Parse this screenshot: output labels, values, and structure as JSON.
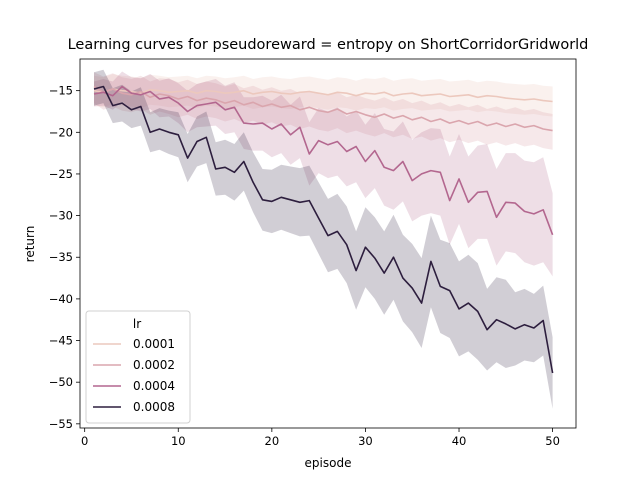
{
  "chart_data": {
    "type": "line",
    "title": "Learning curves for pseudoreward = entropy on ShortCorridorGridworld",
    "xlabel": "episode",
    "ylabel": "return",
    "xlim": [
      -0.5,
      52.5
    ],
    "ylim": [
      -55.5,
      -11.2
    ],
    "xticks": [
      0,
      10,
      20,
      30,
      40,
      50
    ],
    "yticks": [
      -55,
      -50,
      -45,
      -40,
      -35,
      -30,
      -25,
      -20,
      -15
    ],
    "grid": false,
    "legend": {
      "title": "lr",
      "placement": "lower-left"
    },
    "x": [
      1,
      2,
      3,
      4,
      5,
      6,
      7,
      8,
      9,
      10,
      11,
      12,
      13,
      14,
      15,
      16,
      17,
      18,
      19,
      20,
      21,
      22,
      23,
      24,
      25,
      26,
      27,
      28,
      29,
      30,
      31,
      32,
      33,
      34,
      35,
      36,
      37,
      38,
      39,
      40,
      41,
      42,
      43,
      44,
      45,
      46,
      47,
      48,
      49,
      50
    ],
    "series": [
      {
        "name": "0.0001",
        "color": "#ecc8bd",
        "band_opacity": 0.25,
        "values": [
          -15.0,
          -15.2,
          -14.8,
          -15.0,
          -15.1,
          -15.3,
          -14.9,
          -15.0,
          -15.2,
          -15.1,
          -15.0,
          -15.3,
          -15.0,
          -15.1,
          -15.3,
          -15.2,
          -15.0,
          -15.4,
          -15.2,
          -15.1,
          -15.3,
          -15.4,
          -15.2,
          -15.1,
          -15.3,
          -15.5,
          -15.2,
          -15.3,
          -15.6,
          -15.3,
          -15.4,
          -15.2,
          -15.6,
          -15.4,
          -15.3,
          -15.6,
          -15.5,
          -15.4,
          -15.7,
          -15.6,
          -15.5,
          -15.8,
          -15.6,
          -15.7,
          -15.9,
          -16.0,
          -16.1,
          -16.0,
          -16.2,
          -16.3
        ],
        "lower": [
          -16.8,
          -17.0,
          -16.6,
          -16.8,
          -16.9,
          -17.1,
          -16.7,
          -16.8,
          -17.0,
          -16.9,
          -16.8,
          -17.1,
          -16.8,
          -16.9,
          -17.1,
          -17.0,
          -16.8,
          -17.2,
          -17.0,
          -16.9,
          -17.1,
          -17.2,
          -17.0,
          -16.9,
          -17.1,
          -17.3,
          -17.0,
          -17.1,
          -17.4,
          -17.1,
          -17.2,
          -17.0,
          -17.4,
          -17.2,
          -17.1,
          -17.4,
          -17.3,
          -17.2,
          -17.5,
          -17.4,
          -17.3,
          -17.6,
          -17.4,
          -17.5,
          -17.7,
          -17.8,
          -17.9,
          -17.8,
          -18.0,
          -18.1
        ],
        "upper": [
          -13.2,
          -13.4,
          -13.0,
          -13.2,
          -13.3,
          -13.5,
          -13.1,
          -13.2,
          -13.4,
          -13.3,
          -13.2,
          -13.5,
          -13.2,
          -13.3,
          -13.5,
          -13.4,
          -13.2,
          -13.6,
          -13.4,
          -13.3,
          -13.5,
          -13.6,
          -13.4,
          -13.3,
          -13.5,
          -13.7,
          -13.4,
          -13.5,
          -13.8,
          -13.5,
          -13.6,
          -13.4,
          -13.8,
          -13.6,
          -13.5,
          -13.8,
          -13.7,
          -13.6,
          -13.9,
          -13.8,
          -13.7,
          -14.0,
          -13.8,
          -13.9,
          -14.1,
          -14.2,
          -14.3,
          -14.2,
          -14.4,
          -14.5
        ]
      },
      {
        "name": "0.0002",
        "color": "#daa5ad",
        "band_opacity": 0.25,
        "values": [
          -14.5,
          -15.2,
          -14.8,
          -15.3,
          -15.5,
          -15.1,
          -15.8,
          -15.4,
          -15.6,
          -16.0,
          -15.7,
          -16.2,
          -15.9,
          -16.1,
          -16.5,
          -16.2,
          -16.7,
          -16.4,
          -16.9,
          -16.6,
          -17.0,
          -16.8,
          -17.3,
          -17.0,
          -17.4,
          -17.6,
          -17.2,
          -17.8,
          -17.5,
          -17.9,
          -18.2,
          -17.8,
          -18.3,
          -18.0,
          -18.5,
          -18.2,
          -18.7,
          -18.4,
          -18.9,
          -18.6,
          -19.0,
          -18.7,
          -19.2,
          -18.9,
          -19.3,
          -19.0,
          -19.4,
          -19.2,
          -19.6,
          -19.8
        ],
        "lower": [
          -16.5,
          -17.3,
          -16.9,
          -17.4,
          -17.6,
          -17.2,
          -17.9,
          -17.5,
          -17.8,
          -18.2,
          -17.9,
          -18.4,
          -18.1,
          -18.3,
          -18.7,
          -18.4,
          -18.9,
          -18.6,
          -19.1,
          -18.8,
          -19.3,
          -19.1,
          -19.6,
          -19.3,
          -19.7,
          -19.9,
          -19.5,
          -20.1,
          -19.8,
          -20.2,
          -20.5,
          -20.1,
          -20.6,
          -20.3,
          -20.8,
          -20.5,
          -21.0,
          -20.7,
          -21.2,
          -20.9,
          -21.3,
          -21.0,
          -21.5,
          -21.2,
          -21.6,
          -21.3,
          -21.7,
          -21.5,
          -21.9,
          -22.1
        ],
        "upper": [
          -12.8,
          -13.3,
          -12.9,
          -13.4,
          -13.6,
          -13.2,
          -13.9,
          -13.5,
          -13.6,
          -14.0,
          -13.7,
          -14.2,
          -13.9,
          -14.1,
          -14.5,
          -14.2,
          -14.7,
          -14.4,
          -14.9,
          -14.6,
          -15.0,
          -14.8,
          -15.3,
          -15.0,
          -15.4,
          -15.6,
          -15.2,
          -15.8,
          -15.5,
          -15.9,
          -16.2,
          -15.8,
          -16.3,
          -16.0,
          -16.5,
          -16.2,
          -16.7,
          -16.4,
          -16.9,
          -16.6,
          -17.0,
          -16.7,
          -17.2,
          -16.9,
          -17.3,
          -17.0,
          -17.4,
          -17.2,
          -17.6,
          -17.8
        ]
      },
      {
        "name": "0.0004",
        "color": "#b3678f",
        "band_opacity": 0.22,
        "values": [
          -15.4,
          -15.2,
          -15.6,
          -14.5,
          -15.3,
          -15.5,
          -15.1,
          -16.0,
          -15.8,
          -16.5,
          -17.5,
          -16.8,
          -16.6,
          -16.4,
          -17.3,
          -17.0,
          -18.9,
          -19.0,
          -18.9,
          -19.6,
          -19.0,
          -20.3,
          -19.4,
          -22.6,
          -21.0,
          -21.5,
          -21.1,
          -22.3,
          -21.7,
          -23.5,
          -22.2,
          -24.2,
          -24.6,
          -23.5,
          -25.8,
          -25.0,
          -24.6,
          -24.8,
          -28.2,
          -25.6,
          -28.4,
          -27.2,
          -27.1,
          -30.2,
          -28.4,
          -28.5,
          -29.5,
          -29.8,
          -29.3,
          -32.3
        ],
        "lower": [
          -16.9,
          -16.8,
          -17.3,
          -16.3,
          -17.2,
          -17.5,
          -17.2,
          -18.2,
          -18.1,
          -18.9,
          -20.0,
          -19.4,
          -19.3,
          -19.2,
          -20.2,
          -20.0,
          -22.0,
          -22.2,
          -22.2,
          -23.0,
          -22.5,
          -23.9,
          -23.1,
          -26.4,
          -24.9,
          -25.5,
          -25.2,
          -26.5,
          -26.0,
          -27.9,
          -26.7,
          -28.8,
          -29.3,
          -28.3,
          -30.7,
          -30.0,
          -29.7,
          -30.0,
          -33.5,
          -31.0,
          -33.9,
          -32.8,
          -32.8,
          -36.0,
          -34.3,
          -34.5,
          -35.6,
          -36.0,
          -35.6,
          -37.3
        ],
        "upper": [
          -13.9,
          -13.6,
          -13.9,
          -12.7,
          -13.4,
          -13.5,
          -13.0,
          -13.8,
          -13.5,
          -14.1,
          -15.0,
          -14.2,
          -13.9,
          -13.6,
          -14.4,
          -14.0,
          -15.8,
          -15.8,
          -15.6,
          -16.2,
          -15.5,
          -16.7,
          -15.7,
          -18.8,
          -17.1,
          -17.5,
          -17.0,
          -18.1,
          -17.4,
          -19.1,
          -17.7,
          -19.6,
          -19.9,
          -18.7,
          -20.9,
          -20.0,
          -19.5,
          -19.6,
          -22.9,
          -20.2,
          -22.9,
          -21.6,
          -21.4,
          -24.4,
          -22.5,
          -22.5,
          -23.4,
          -23.6,
          -23.0,
          -27.3
        ]
      },
      {
        "name": "0.0008",
        "color": "#2d1e3e",
        "band_opacity": 0.22,
        "values": [
          -14.8,
          -14.5,
          -16.8,
          -16.5,
          -17.3,
          -16.9,
          -20.0,
          -19.6,
          -20.0,
          -20.3,
          -23.1,
          -21.1,
          -20.6,
          -24.4,
          -24.2,
          -24.8,
          -23.5,
          -26.0,
          -28.1,
          -28.3,
          -27.8,
          -28.1,
          -28.4,
          -28.2,
          -30.3,
          -32.4,
          -31.9,
          -33.5,
          -36.6,
          -33.8,
          -35.1,
          -36.9,
          -35.0,
          -37.5,
          -38.7,
          -40.5,
          -35.5,
          -38.5,
          -39.0,
          -41.2,
          -40.5,
          -41.5,
          -43.7,
          -42.5,
          -43.0,
          -43.6,
          -43.1,
          -43.5,
          -42.6,
          -48.9
        ],
        "lower": [
          -16.8,
          -16.5,
          -18.9,
          -18.7,
          -19.5,
          -19.2,
          -22.4,
          -22.1,
          -22.6,
          -23.0,
          -26.0,
          -24.1,
          -23.7,
          -27.6,
          -27.5,
          -28.2,
          -27.0,
          -29.6,
          -31.8,
          -32.1,
          -31.7,
          -32.1,
          -32.5,
          -32.4,
          -34.6,
          -36.8,
          -36.4,
          -38.1,
          -41.3,
          -38.6,
          -40.0,
          -41.9,
          -40.1,
          -42.7,
          -44.0,
          -45.9,
          -41.0,
          -44.1,
          -44.7,
          -46.9,
          -46.3,
          -47.3,
          -48.6,
          -47.6,
          -48.3,
          -48.0,
          -47.4,
          -47.6,
          -46.8,
          -53.2
        ],
        "upper": [
          -12.8,
          -12.5,
          -14.7,
          -14.3,
          -15.1,
          -14.6,
          -17.6,
          -17.1,
          -17.4,
          -17.6,
          -20.2,
          -18.1,
          -17.5,
          -21.2,
          -20.9,
          -21.4,
          -20.0,
          -22.4,
          -24.4,
          -24.5,
          -23.9,
          -24.1,
          -24.3,
          -24.0,
          -26.0,
          -28.0,
          -27.4,
          -28.9,
          -31.9,
          -29.0,
          -30.2,
          -31.9,
          -29.9,
          -32.3,
          -33.4,
          -35.1,
          -30.0,
          -32.9,
          -33.3,
          -35.5,
          -34.7,
          -35.7,
          -38.8,
          -37.4,
          -37.7,
          -39.2,
          -38.8,
          -39.4,
          -38.4,
          -44.6
        ]
      }
    ]
  }
}
